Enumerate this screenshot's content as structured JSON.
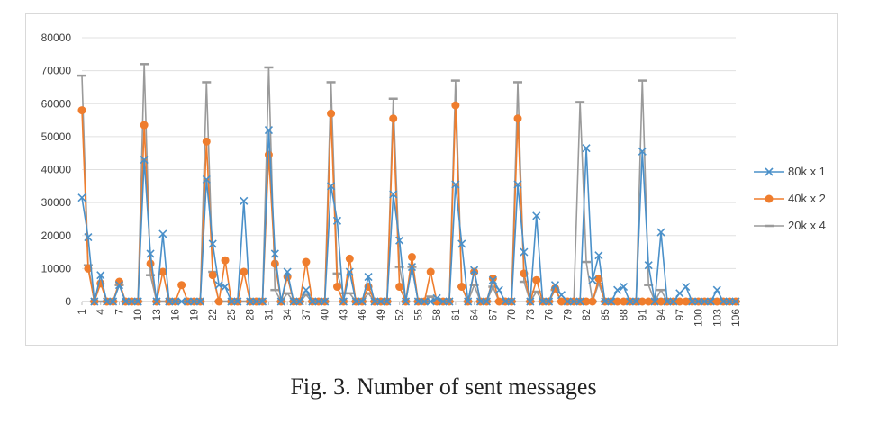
{
  "caption": "Fig. 3.  Number of sent messages",
  "chart_data": {
    "type": "line",
    "title": "",
    "xlabel": "",
    "ylabel": "",
    "ylim": [
      0,
      80000
    ],
    "y_ticks": [
      "0",
      "10000",
      "20000",
      "30000",
      "40000",
      "50000",
      "60000",
      "70000",
      "80000"
    ],
    "x_ticks": [
      1,
      4,
      7,
      10,
      13,
      16,
      19,
      22,
      25,
      28,
      31,
      34,
      37,
      40,
      43,
      46,
      49,
      52,
      55,
      58,
      61,
      64,
      67,
      70,
      73,
      76,
      79,
      82,
      85,
      88,
      91,
      94,
      97,
      100,
      103,
      106
    ],
    "x": [
      1,
      2,
      3,
      4,
      5,
      6,
      7,
      8,
      9,
      10,
      11,
      12,
      13,
      14,
      15,
      16,
      17,
      18,
      19,
      20,
      21,
      22,
      23,
      24,
      25,
      26,
      27,
      28,
      29,
      30,
      31,
      32,
      33,
      34,
      35,
      36,
      37,
      38,
      39,
      40,
      41,
      42,
      43,
      44,
      45,
      46,
      47,
      48,
      49,
      50,
      51,
      52,
      53,
      54,
      55,
      56,
      57,
      58,
      59,
      60,
      61,
      62,
      63,
      64,
      65,
      66,
      67,
      68,
      69,
      70,
      71,
      72,
      73,
      74,
      75,
      76,
      77,
      78,
      79,
      80,
      81,
      82,
      83,
      84,
      85,
      86,
      87,
      88,
      89,
      90,
      91,
      92,
      93,
      94,
      95,
      96,
      97,
      98,
      99,
      100,
      101,
      102,
      103,
      104,
      105,
      106
    ],
    "grid": true,
    "legend_position": "right",
    "series": [
      {
        "name": "80k x 1",
        "color": "#4a90c9",
        "marker": "x",
        "values": [
          31500,
          19500,
          0,
          8000,
          0,
          0,
          5000,
          0,
          0,
          0,
          43000,
          14500,
          0,
          20500,
          0,
          0,
          0,
          0,
          0,
          0,
          37000,
          17500,
          5000,
          4500,
          0,
          0,
          30500,
          0,
          0,
          0,
          52000,
          14500,
          0,
          9000,
          0,
          0,
          3500,
          0,
          0,
          0,
          35000,
          24500,
          0,
          9000,
          0,
          0,
          7500,
          0,
          0,
          0,
          32500,
          18500,
          0,
          10500,
          0,
          0,
          0,
          1000,
          0,
          0,
          35500,
          17500,
          0,
          9500,
          0,
          0,
          6500,
          3500,
          0,
          0,
          35500,
          15000,
          0,
          26000,
          0,
          0,
          5000,
          2000,
          0,
          0,
          0,
          46500,
          6500,
          14000,
          0,
          0,
          3500,
          4500,
          0,
          0,
          45500,
          11000,
          0,
          21000,
          0,
          0,
          2500,
          4500,
          0,
          0,
          0,
          0,
          3500,
          0,
          0,
          0
        ]
      },
      {
        "name": "40k x 2",
        "color": "#ef7d2d",
        "marker": "circle",
        "values": [
          58000,
          10000,
          0,
          5500,
          0,
          0,
          6000,
          0,
          0,
          0,
          53500,
          11500,
          0,
          9000,
          0,
          0,
          5000,
          0,
          0,
          0,
          48500,
          8000,
          0,
          12500,
          0,
          0,
          9000,
          0,
          0,
          0,
          44500,
          11500,
          0,
          7500,
          0,
          0,
          12000,
          0,
          0,
          0,
          57000,
          4500,
          0,
          13000,
          0,
          0,
          4500,
          0,
          0,
          0,
          55500,
          4500,
          0,
          13500,
          0,
          0,
          9000,
          0,
          0,
          0,
          59500,
          4500,
          0,
          9000,
          0,
          0,
          7000,
          0,
          0,
          0,
          55500,
          8500,
          0,
          6500,
          0,
          0,
          4000,
          0,
          0,
          0,
          0,
          0,
          0,
          7000,
          0,
          0,
          0,
          0,
          0,
          0,
          0,
          0,
          0,
          0,
          0,
          0,
          0,
          0,
          0,
          0,
          0,
          0,
          0,
          0,
          0,
          0
        ]
      },
      {
        "name": "20k x 4",
        "color": "#9a9a9a",
        "marker": "dash",
        "values": [
          68500,
          11000,
          0,
          0,
          0,
          0,
          5000,
          0,
          0,
          0,
          72000,
          8000,
          0,
          0,
          0,
          0,
          0,
          0,
          0,
          0,
          66500,
          9000,
          0,
          0,
          0,
          0,
          0,
          0,
          0,
          0,
          71000,
          3500,
          0,
          2500,
          0,
          0,
          2000,
          0,
          0,
          0,
          66500,
          8500,
          2500,
          2500,
          0,
          0,
          2500,
          0,
          0,
          0,
          61500,
          10500,
          0,
          10500,
          0,
          0,
          1500,
          0,
          0,
          0,
          67000,
          4500,
          0,
          5000,
          0,
          0,
          4500,
          0,
          0,
          0,
          66500,
          6000,
          0,
          3000,
          0,
          0,
          3500,
          0,
          0,
          0,
          60500,
          12000,
          0,
          5500,
          0,
          0,
          0,
          0,
          0,
          0,
          67000,
          5000,
          0,
          3500,
          0,
          0,
          0,
          0,
          0,
          0,
          0,
          0,
          0,
          0,
          0,
          0
        ]
      }
    ]
  }
}
